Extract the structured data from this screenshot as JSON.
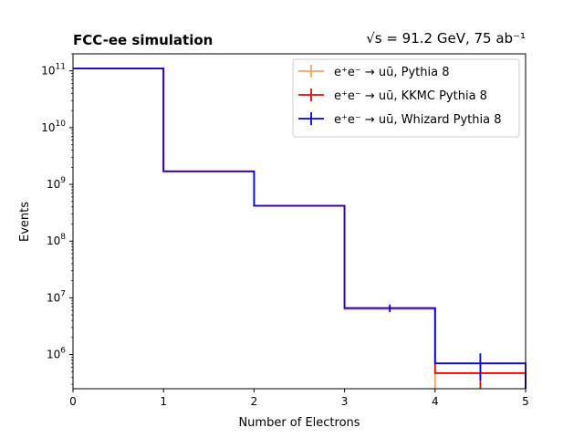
{
  "chart_data": {
    "type": "step",
    "title_left": "FCC-ee simulation",
    "title_right": "√s = 91.2 GeV, 75 ab⁻¹",
    "xlabel": "Number of Electrons",
    "ylabel": "Events",
    "xlim": [
      0,
      5
    ],
    "ylim": [
      250000,
      200000000000
    ],
    "yscale": "log",
    "grid": false,
    "legend_position": "top-right",
    "bin_edges": [
      0,
      1,
      2,
      3,
      4,
      5
    ],
    "x_ticks": [
      "0",
      "1",
      "2",
      "3",
      "4",
      "5"
    ],
    "y_ticks": [
      {
        "value": 1000000,
        "mantissa": "10",
        "exp": "6"
      },
      {
        "value": 10000000,
        "mantissa": "10",
        "exp": "7"
      },
      {
        "value": 100000000,
        "mantissa": "10",
        "exp": "8"
      },
      {
        "value": 1000000000,
        "mantissa": "10",
        "exp": "9"
      },
      {
        "value": 10000000000,
        "mantissa": "10",
        "exp": "10"
      },
      {
        "value": 100000000000,
        "mantissa": "10",
        "exp": "11"
      }
    ],
    "series": [
      {
        "name": "e⁺e⁻ → uū, Pythia 8",
        "color": "#f4a460",
        "values": [
          110000000000,
          1700000000,
          420000000,
          6300000,
          0
        ],
        "errors": [
          0,
          0,
          0,
          0,
          0
        ]
      },
      {
        "name": "e⁺e⁻ → uū, KKMC Pythia 8",
        "color": "#ff0000",
        "values": [
          110000000000,
          1700000000,
          420000000,
          6600000,
          470000
        ],
        "errors": [
          0,
          0,
          0,
          500000,
          220000
        ]
      },
      {
        "name": "e⁺e⁻ → uū, Whizard Pythia 8",
        "color": "#0000ff",
        "values": [
          110000000000,
          1700000000,
          420000000,
          6600000,
          700000
        ],
        "errors": [
          0,
          0,
          0,
          1000000,
          350000
        ]
      }
    ]
  }
}
